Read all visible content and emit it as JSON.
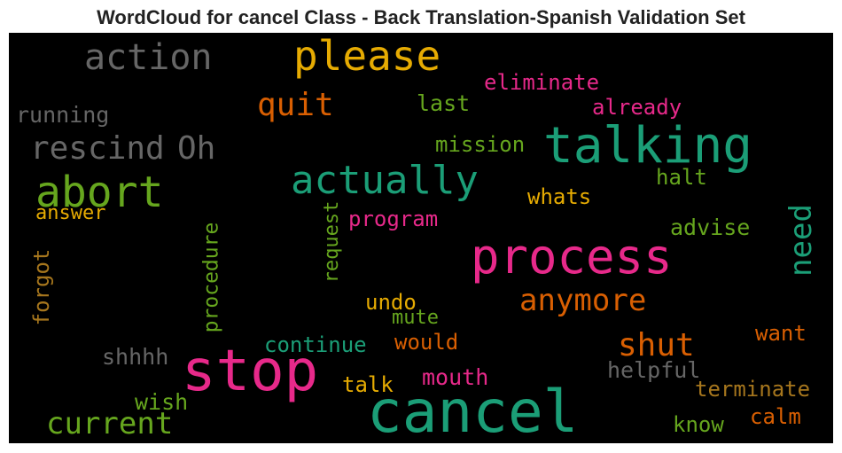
{
  "title": "WordCloud for cancel Class - Back Translation-Spanish Validation Set",
  "colors": {
    "background": "#000000",
    "teal": "#1b9e77",
    "pink": "#e7298a",
    "orange": "#d95f02",
    "gold": "#e6ab02",
    "green": "#66a61e",
    "gray": "#666666",
    "brown": "#a6761d"
  },
  "words": [
    {
      "text": "action",
      "color": "gray"
    },
    {
      "text": "please",
      "color": "gold"
    },
    {
      "text": "eliminate",
      "color": "pink"
    },
    {
      "text": "running",
      "color": "gray"
    },
    {
      "text": "quit",
      "color": "orange"
    },
    {
      "text": "last",
      "color": "green"
    },
    {
      "text": "already",
      "color": "pink"
    },
    {
      "text": "talking",
      "color": "teal"
    },
    {
      "text": "rescind",
      "color": "gray"
    },
    {
      "text": "Oh",
      "color": "gray"
    },
    {
      "text": "mission",
      "color": "green"
    },
    {
      "text": "actually",
      "color": "teal"
    },
    {
      "text": "halt",
      "color": "green"
    },
    {
      "text": "abort",
      "color": "green"
    },
    {
      "text": "whats",
      "color": "gold"
    },
    {
      "text": "answer",
      "color": "gold"
    },
    {
      "text": "program",
      "color": "pink"
    },
    {
      "text": "need",
      "color": "teal"
    },
    {
      "text": "advise",
      "color": "green"
    },
    {
      "text": "request",
      "color": "green"
    },
    {
      "text": "procedure",
      "color": "green"
    },
    {
      "text": "process",
      "color": "pink"
    },
    {
      "text": "forgot",
      "color": "brown"
    },
    {
      "text": "anymore",
      "color": "orange"
    },
    {
      "text": "undo",
      "color": "gold"
    },
    {
      "text": "mute",
      "color": "green"
    },
    {
      "text": "shut",
      "color": "orange"
    },
    {
      "text": "continue",
      "color": "teal"
    },
    {
      "text": "would",
      "color": "orange"
    },
    {
      "text": "want",
      "color": "orange"
    },
    {
      "text": "shhhh",
      "color": "gray"
    },
    {
      "text": "stop",
      "color": "pink"
    },
    {
      "text": "helpful",
      "color": "gray"
    },
    {
      "text": "mouth",
      "color": "pink"
    },
    {
      "text": "talk",
      "color": "gold"
    },
    {
      "text": "terminate",
      "color": "brown"
    },
    {
      "text": "wish",
      "color": "green"
    },
    {
      "text": "cancel",
      "color": "teal"
    },
    {
      "text": "calm",
      "color": "orange"
    },
    {
      "text": "current",
      "color": "green"
    },
    {
      "text": "know",
      "color": "green"
    }
  ]
}
